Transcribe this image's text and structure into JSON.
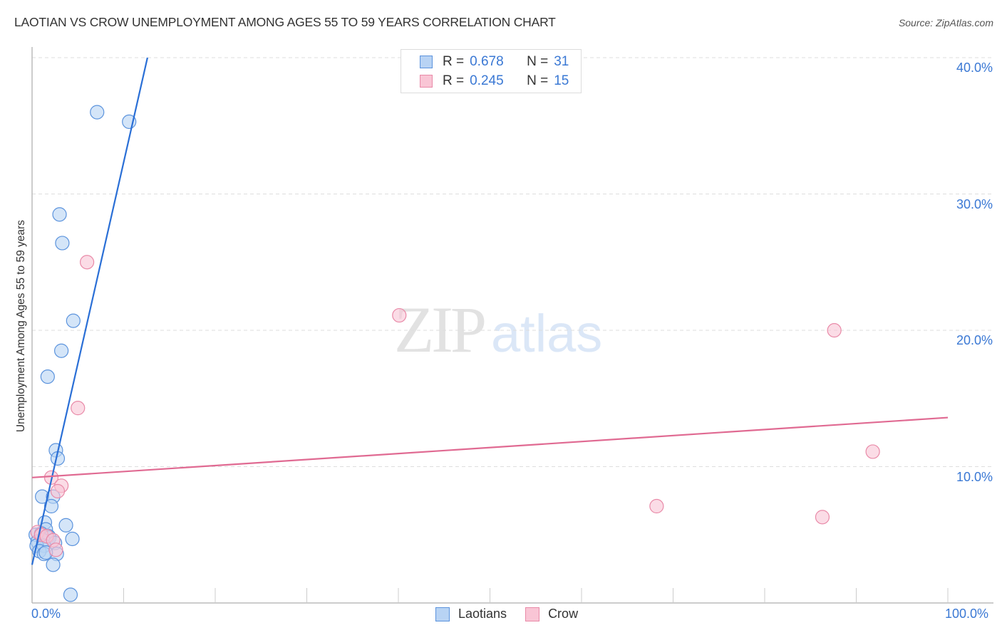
{
  "header": {
    "title": "LAOTIAN VS CROW UNEMPLOYMENT AMONG AGES 55 TO 59 YEARS CORRELATION CHART",
    "source": "Source: ZipAtlas.com"
  },
  "watermark": {
    "zip": "ZIP",
    "atlas": "atlas"
  },
  "axes": {
    "ylabel": "Unemployment Among Ages 55 to 59 years",
    "yticks": [
      "40.0%",
      "30.0%",
      "20.0%",
      "10.0%"
    ],
    "xticks": [
      "0.0%",
      "100.0%"
    ]
  },
  "legend": {
    "series": [
      {
        "r_label": "R =",
        "r_value": "0.678",
        "n_label": "N =",
        "n_value": "31"
      },
      {
        "r_label": "R =",
        "r_value": "0.245",
        "n_label": "N =",
        "n_value": "15"
      }
    ],
    "bottom": [
      "Laotians",
      "Crow"
    ]
  },
  "colors": {
    "laotians_fill": "#b8d3f4",
    "laotians_stroke": "#5b93dd",
    "laotians_line": "#2a6fd6",
    "crow_fill": "#f9c5d5",
    "crow_stroke": "#e98aa8",
    "crow_line": "#e06a92",
    "tick_text": "#3a78d4"
  },
  "chart_data": {
    "type": "scatter",
    "title": "LAOTIAN VS CROW UNEMPLOYMENT AMONG AGES 55 TO 59 YEARS CORRELATION CHART",
    "xlabel": "",
    "ylabel": "Unemployment Among Ages 55 to 59 years",
    "xlim": [
      0,
      100
    ],
    "ylim": [
      0,
      40
    ],
    "x_tick_labels": [
      "0.0%",
      "100.0%"
    ],
    "y_tick_labels": [
      "10.0%",
      "20.0%",
      "30.0%",
      "40.0%"
    ],
    "grid": "horizontal dashed",
    "legend_position": "top-center and bottom",
    "series": [
      {
        "name": "Laotians",
        "R": 0.678,
        "N": 31,
        "points": [
          [
            7.1,
            36.0
          ],
          [
            10.6,
            35.3
          ],
          [
            3.0,
            28.5
          ],
          [
            3.3,
            26.4
          ],
          [
            4.5,
            20.7
          ],
          [
            3.2,
            18.5
          ],
          [
            1.7,
            16.6
          ],
          [
            2.6,
            11.2
          ],
          [
            2.8,
            10.6
          ],
          [
            1.1,
            7.8
          ],
          [
            2.3,
            7.8
          ],
          [
            2.1,
            7.1
          ],
          [
            1.4,
            5.9
          ],
          [
            3.7,
            5.7
          ],
          [
            1.5,
            5.4
          ],
          [
            0.4,
            5.0
          ],
          [
            1.0,
            5.1
          ],
          [
            1.8,
            4.9
          ],
          [
            1.9,
            4.8
          ],
          [
            0.6,
            4.5
          ],
          [
            1.2,
            4.6
          ],
          [
            2.5,
            4.4
          ],
          [
            0.5,
            4.2
          ],
          [
            1.3,
            4.2
          ],
          [
            4.4,
            4.7
          ],
          [
            0.8,
            3.8
          ],
          [
            1.3,
            3.6
          ],
          [
            2.7,
            3.6
          ],
          [
            2.3,
            2.8
          ],
          [
            1.5,
            3.7
          ],
          [
            4.2,
            0.6
          ]
        ],
        "trendline": {
          "x": [
            0,
            12.6
          ],
          "y": [
            2.8,
            40.0
          ]
        }
      },
      {
        "name": "Crow",
        "R": 0.245,
        "N": 15,
        "points": [
          [
            6.0,
            25.0
          ],
          [
            40.1,
            21.1
          ],
          [
            87.6,
            20.0
          ],
          [
            5.0,
            14.3
          ],
          [
            91.8,
            11.1
          ],
          [
            2.1,
            9.2
          ],
          [
            3.2,
            8.6
          ],
          [
            2.8,
            8.2
          ],
          [
            68.2,
            7.1
          ],
          [
            86.3,
            6.3
          ],
          [
            0.6,
            5.2
          ],
          [
            1.0,
            5.0
          ],
          [
            1.6,
            4.9
          ],
          [
            2.3,
            4.6
          ],
          [
            2.6,
            3.9
          ]
        ],
        "trendline": {
          "x": [
            0,
            100
          ],
          "y": [
            9.2,
            13.6
          ]
        }
      }
    ]
  }
}
